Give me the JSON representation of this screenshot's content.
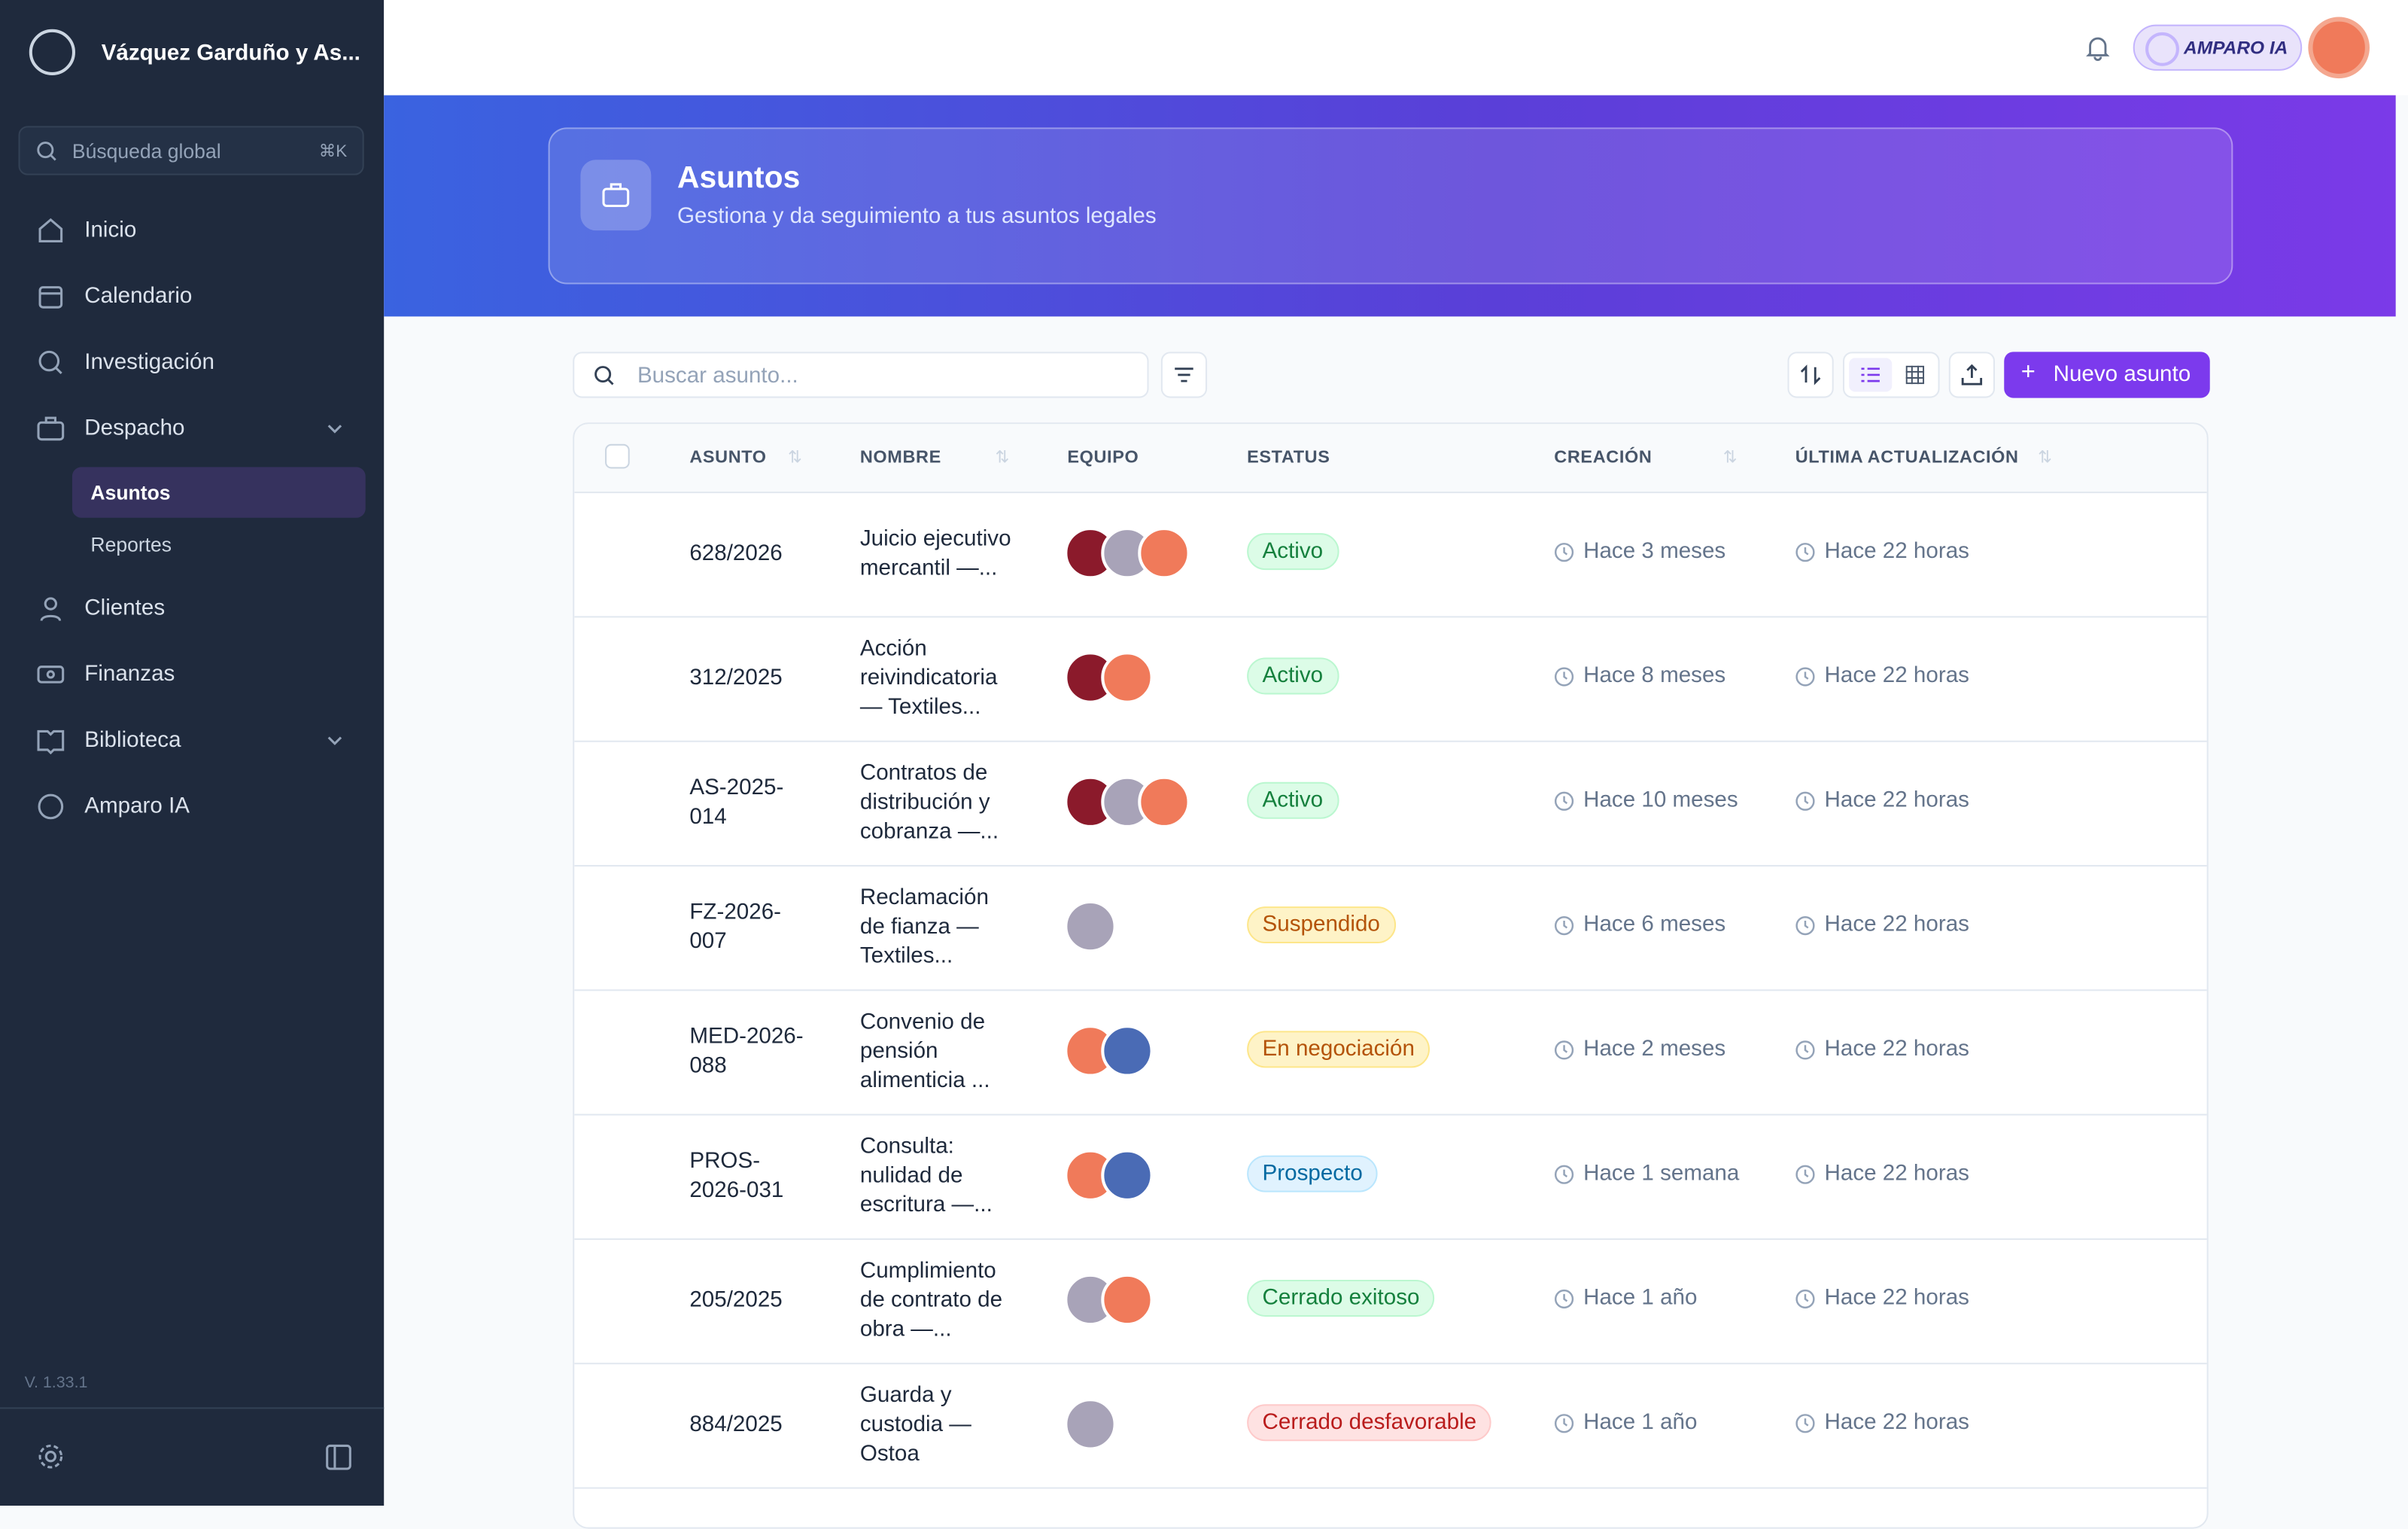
{
  "sidebar": {
    "org": "Vázquez Garduño y As...",
    "search": "Búsqueda global",
    "shortcut": "⌘K",
    "nav": [
      "Inicio",
      "Calendario",
      "Investigación",
      "Despacho",
      "Clientes",
      "Finanzas",
      "Biblioteca",
      "Amparo IA"
    ],
    "subnav": [
      "Asuntos",
      "Reportes"
    ],
    "version": "V. 1.33.1"
  },
  "topbar": {
    "ai": "AMPARO IA"
  },
  "banner": {
    "title": "Asuntos",
    "subtitle": "Gestiona y da seguimiento a tus asuntos legales"
  },
  "toolbar": {
    "search": "Buscar asunto...",
    "new": "Nuevo asunto"
  },
  "table": {
    "columns": [
      "ASUNTO",
      "NOMBRE",
      "EQUIPO",
      "ESTATUS",
      "CREACIÓN",
      "ÚLTIMA ACTUALIZACIÓN"
    ],
    "rows": [
      [
        "628/2026",
        "Juicio ejecutivo mercantil —...",
        "Activo",
        "Hace 3 meses",
        "Hace 22 horas"
      ],
      [
        "312/2025",
        "Acción reivindicatoria — Textiles...",
        "Activo",
        "Hace 8 meses",
        "Hace 22 horas"
      ],
      [
        "AS-2025-014",
        "Contratos de distribución y cobranza —...",
        "Activo",
        "Hace 10 meses",
        "Hace 22 horas"
      ],
      [
        "FZ-2026-007",
        "Reclamación de fianza — Textiles...",
        "Suspendido",
        "Hace 6 meses",
        "Hace 22 horas"
      ],
      [
        "MED-2026-088",
        "Convenio de pensión alimenticia ...",
        "En negociación",
        "Hace 2 meses",
        "Hace 22 horas"
      ],
      [
        "PROS-2026-031",
        "Consulta: nulidad de escritura —...",
        "Prospecto",
        "Hace 1 semana",
        "Hace 22 horas"
      ],
      [
        "205/2025",
        "Cumplimiento de contrato de obra —...",
        "Cerrado exitoso",
        "Hace 1 año",
        "Hace 22 horas"
      ],
      [
        "884/2025",
        "Guarda y custodia — Ostoa",
        "Cerrado desfavorable",
        "Hace 1 año",
        "Hace 22 horas"
      ]
    ]
  }
}
